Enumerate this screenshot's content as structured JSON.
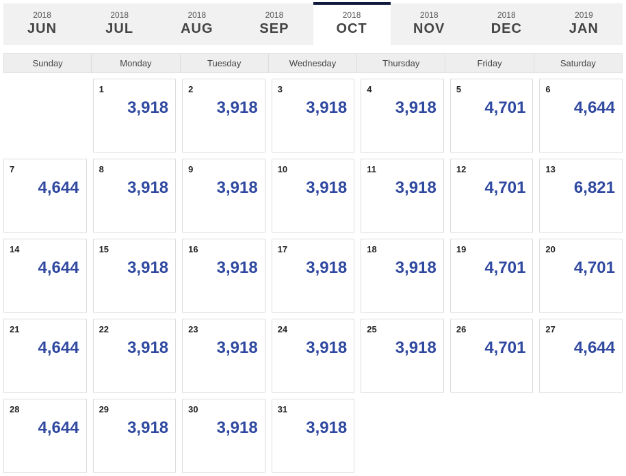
{
  "colors": {
    "tab_bg": "#f1f1f1",
    "tab_active_bar": "#111a3e",
    "dow_bg": "#eeeeee",
    "cell_border": "#dcdcdc",
    "price_color": "#3049a0",
    "text_muted": "#555555"
  },
  "monthTabs": {
    "activeIndex": 4,
    "items": [
      {
        "year": "2018",
        "month": "JUN"
      },
      {
        "year": "2018",
        "month": "JUL"
      },
      {
        "year": "2018",
        "month": "AUG"
      },
      {
        "year": "2018",
        "month": "SEP"
      },
      {
        "year": "2018",
        "month": "OCT"
      },
      {
        "year": "2018",
        "month": "NOV"
      },
      {
        "year": "2018",
        "month": "DEC"
      },
      {
        "year": "2019",
        "month": "JAN"
      }
    ]
  },
  "daysOfWeek": [
    "Sunday",
    "Monday",
    "Tuesday",
    "Wednesday",
    "Thursday",
    "Friday",
    "Saturday"
  ],
  "calendar": {
    "leadingBlanks": 1,
    "days": [
      {
        "day": "1",
        "price": "3,918"
      },
      {
        "day": "2",
        "price": "3,918"
      },
      {
        "day": "3",
        "price": "3,918"
      },
      {
        "day": "4",
        "price": "3,918"
      },
      {
        "day": "5",
        "price": "4,701"
      },
      {
        "day": "6",
        "price": "4,644"
      },
      {
        "day": "7",
        "price": "4,644"
      },
      {
        "day": "8",
        "price": "3,918"
      },
      {
        "day": "9",
        "price": "3,918"
      },
      {
        "day": "10",
        "price": "3,918"
      },
      {
        "day": "11",
        "price": "3,918"
      },
      {
        "day": "12",
        "price": "4,701"
      },
      {
        "day": "13",
        "price": "6,821"
      },
      {
        "day": "14",
        "price": "4,644"
      },
      {
        "day": "15",
        "price": "3,918"
      },
      {
        "day": "16",
        "price": "3,918"
      },
      {
        "day": "17",
        "price": "3,918"
      },
      {
        "day": "18",
        "price": "3,918"
      },
      {
        "day": "19",
        "price": "4,701"
      },
      {
        "day": "20",
        "price": "4,701"
      },
      {
        "day": "21",
        "price": "4,644"
      },
      {
        "day": "22",
        "price": "3,918"
      },
      {
        "day": "23",
        "price": "3,918"
      },
      {
        "day": "24",
        "price": "3,918"
      },
      {
        "day": "25",
        "price": "3,918"
      },
      {
        "day": "26",
        "price": "4,701"
      },
      {
        "day": "27",
        "price": "4,644"
      },
      {
        "day": "28",
        "price": "4,644"
      },
      {
        "day": "29",
        "price": "3,918"
      },
      {
        "day": "30",
        "price": "3,918"
      },
      {
        "day": "31",
        "price": "3,918"
      }
    ]
  }
}
